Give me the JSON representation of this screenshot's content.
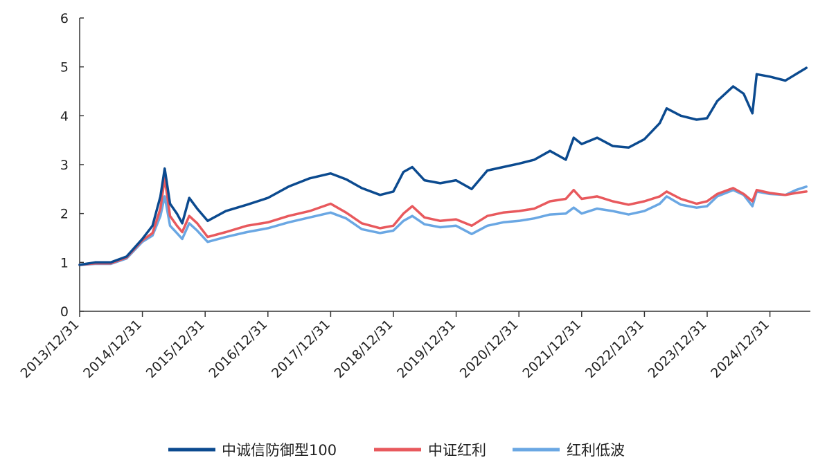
{
  "chart_data": {
    "type": "line",
    "title": "",
    "xlabel": "",
    "ylabel": "",
    "ylim": [
      0,
      6
    ],
    "yticks": [
      "0",
      "1",
      "2",
      "3",
      "4",
      "5",
      "6"
    ],
    "x_tick_labels": [
      "2013/12/31",
      "2014/12/31",
      "2015/12/31",
      "2016/12/31",
      "2017/12/31",
      "2018/12/31",
      "2019/12/31",
      "2020/12/31",
      "2021/12/31",
      "2022/12/31",
      "2023/12/31",
      "2024/12/31"
    ],
    "x_range": [
      "2013/12/31",
      "2025/07/31"
    ],
    "legend_position": "bottom",
    "grid": false,
    "series": [
      {
        "name": "中诚信防御型100",
        "color": "#0b4a8f",
        "points": [
          [
            "2013/12/31",
            0.95
          ],
          [
            "2014/03/31",
            1.0
          ],
          [
            "2014/06/30",
            1.0
          ],
          [
            "2014/09/30",
            1.12
          ],
          [
            "2014/12/31",
            1.48
          ],
          [
            "2015/02/28",
            1.75
          ],
          [
            "2015/04/15",
            2.35
          ],
          [
            "2015/05/10",
            2.92
          ],
          [
            "2015/06/10",
            2.2
          ],
          [
            "2015/07/20",
            2.0
          ],
          [
            "2015/08/20",
            1.8
          ],
          [
            "2015/09/30",
            2.32
          ],
          [
            "2015/11/15",
            2.1
          ],
          [
            "2016/01/15",
            1.85
          ],
          [
            "2016/04/30",
            2.05
          ],
          [
            "2016/08/31",
            2.18
          ],
          [
            "2016/12/31",
            2.32
          ],
          [
            "2017/04/30",
            2.55
          ],
          [
            "2017/08/31",
            2.72
          ],
          [
            "2017/12/31",
            2.82
          ],
          [
            "2018/03/31",
            2.7
          ],
          [
            "2018/06/30",
            2.52
          ],
          [
            "2018/10/15",
            2.38
          ],
          [
            "2018/12/31",
            2.45
          ],
          [
            "2019/02/28",
            2.85
          ],
          [
            "2019/04/20",
            2.95
          ],
          [
            "2019/06/30",
            2.68
          ],
          [
            "2019/09/30",
            2.62
          ],
          [
            "2019/12/31",
            2.68
          ],
          [
            "2020/03/31",
            2.5
          ],
          [
            "2020/06/30",
            2.88
          ],
          [
            "2020/09/30",
            2.95
          ],
          [
            "2020/12/31",
            3.02
          ],
          [
            "2021/03/31",
            3.1
          ],
          [
            "2021/06/30",
            3.28
          ],
          [
            "2021/09/30",
            3.1
          ],
          [
            "2021/11/15",
            3.55
          ],
          [
            "2021/12/31",
            3.42
          ],
          [
            "2022/03/31",
            3.55
          ],
          [
            "2022/06/30",
            3.38
          ],
          [
            "2022/09/30",
            3.35
          ],
          [
            "2022/12/31",
            3.52
          ],
          [
            "2023/03/31",
            3.85
          ],
          [
            "2023/05/10",
            4.15
          ],
          [
            "2023/07/31",
            4.0
          ],
          [
            "2023/10/31",
            3.92
          ],
          [
            "2023/12/31",
            3.95
          ],
          [
            "2024/02/28",
            4.3
          ],
          [
            "2024/05/31",
            4.6
          ],
          [
            "2024/07/31",
            4.45
          ],
          [
            "2024/09/20",
            4.05
          ],
          [
            "2024/10/15",
            4.85
          ],
          [
            "2024/12/31",
            4.8
          ],
          [
            "2025/03/31",
            4.72
          ],
          [
            "2025/05/31",
            4.85
          ],
          [
            "2025/07/31",
            4.98
          ]
        ]
      },
      {
        "name": "中证红利",
        "color": "#e8595d",
        "points": [
          [
            "2013/12/31",
            0.95
          ],
          [
            "2014/03/31",
            0.98
          ],
          [
            "2014/06/30",
            0.98
          ],
          [
            "2014/09/30",
            1.1
          ],
          [
            "2014/12/31",
            1.45
          ],
          [
            "2015/02/28",
            1.6
          ],
          [
            "2015/04/15",
            2.1
          ],
          [
            "2015/05/10",
            2.72
          ],
          [
            "2015/06/10",
            1.95
          ],
          [
            "2015/07/20",
            1.75
          ],
          [
            "2015/08/20",
            1.62
          ],
          [
            "2015/09/30",
            1.95
          ],
          [
            "2015/11/15",
            1.8
          ],
          [
            "2016/01/15",
            1.52
          ],
          [
            "2016/04/30",
            1.62
          ],
          [
            "2016/08/31",
            1.75
          ],
          [
            "2016/12/31",
            1.82
          ],
          [
            "2017/04/30",
            1.95
          ],
          [
            "2017/08/31",
            2.05
          ],
          [
            "2017/12/31",
            2.2
          ],
          [
            "2018/03/31",
            2.02
          ],
          [
            "2018/06/30",
            1.8
          ],
          [
            "2018/10/15",
            1.7
          ],
          [
            "2018/12/31",
            1.75
          ],
          [
            "2019/02/28",
            2.0
          ],
          [
            "2019/04/20",
            2.15
          ],
          [
            "2019/06/30",
            1.92
          ],
          [
            "2019/09/30",
            1.85
          ],
          [
            "2019/12/31",
            1.88
          ],
          [
            "2020/03/31",
            1.75
          ],
          [
            "2020/06/30",
            1.95
          ],
          [
            "2020/09/30",
            2.02
          ],
          [
            "2020/12/31",
            2.05
          ],
          [
            "2021/03/31",
            2.1
          ],
          [
            "2021/06/30",
            2.25
          ],
          [
            "2021/09/30",
            2.3
          ],
          [
            "2021/11/15",
            2.48
          ],
          [
            "2021/12/31",
            2.3
          ],
          [
            "2022/03/31",
            2.35
          ],
          [
            "2022/06/30",
            2.25
          ],
          [
            "2022/09/30",
            2.18
          ],
          [
            "2022/12/31",
            2.25
          ],
          [
            "2023/03/31",
            2.35
          ],
          [
            "2023/05/10",
            2.45
          ],
          [
            "2023/07/31",
            2.3
          ],
          [
            "2023/10/31",
            2.2
          ],
          [
            "2023/12/31",
            2.25
          ],
          [
            "2024/02/28",
            2.4
          ],
          [
            "2024/05/31",
            2.52
          ],
          [
            "2024/07/31",
            2.4
          ],
          [
            "2024/09/20",
            2.25
          ],
          [
            "2024/10/15",
            2.48
          ],
          [
            "2024/12/31",
            2.42
          ],
          [
            "2025/03/31",
            2.38
          ],
          [
            "2025/05/31",
            2.42
          ],
          [
            "2025/07/31",
            2.45
          ]
        ]
      },
      {
        "name": "红利低波",
        "color": "#6aa7e3",
        "points": [
          [
            "2013/12/31",
            0.95
          ],
          [
            "2014/03/31",
            0.97
          ],
          [
            "2014/06/30",
            0.97
          ],
          [
            "2014/09/30",
            1.08
          ],
          [
            "2014/12/31",
            1.42
          ],
          [
            "2015/02/28",
            1.55
          ],
          [
            "2015/04/15",
            1.95
          ],
          [
            "2015/05/10",
            2.35
          ],
          [
            "2015/06/10",
            1.75
          ],
          [
            "2015/07/20",
            1.6
          ],
          [
            "2015/08/20",
            1.48
          ],
          [
            "2015/09/30",
            1.8
          ],
          [
            "2015/11/15",
            1.65
          ],
          [
            "2016/01/15",
            1.42
          ],
          [
            "2016/04/30",
            1.52
          ],
          [
            "2016/08/31",
            1.62
          ],
          [
            "2016/12/31",
            1.7
          ],
          [
            "2017/04/30",
            1.82
          ],
          [
            "2017/08/31",
            1.92
          ],
          [
            "2017/12/31",
            2.02
          ],
          [
            "2018/03/31",
            1.9
          ],
          [
            "2018/06/30",
            1.68
          ],
          [
            "2018/10/15",
            1.6
          ],
          [
            "2018/12/31",
            1.65
          ],
          [
            "2019/02/28",
            1.85
          ],
          [
            "2019/04/20",
            1.95
          ],
          [
            "2019/06/30",
            1.78
          ],
          [
            "2019/09/30",
            1.72
          ],
          [
            "2019/12/31",
            1.75
          ],
          [
            "2020/03/31",
            1.58
          ],
          [
            "2020/06/30",
            1.75
          ],
          [
            "2020/09/30",
            1.82
          ],
          [
            "2020/12/31",
            1.85
          ],
          [
            "2021/03/31",
            1.9
          ],
          [
            "2021/06/30",
            1.98
          ],
          [
            "2021/09/30",
            2.0
          ],
          [
            "2021/11/15",
            2.12
          ],
          [
            "2021/12/31",
            2.0
          ],
          [
            "2022/03/31",
            2.1
          ],
          [
            "2022/06/30",
            2.05
          ],
          [
            "2022/09/30",
            1.98
          ],
          [
            "2022/12/31",
            2.05
          ],
          [
            "2023/03/31",
            2.2
          ],
          [
            "2023/05/10",
            2.35
          ],
          [
            "2023/07/31",
            2.18
          ],
          [
            "2023/10/31",
            2.12
          ],
          [
            "2023/12/31",
            2.15
          ],
          [
            "2024/02/28",
            2.35
          ],
          [
            "2024/05/31",
            2.48
          ],
          [
            "2024/07/31",
            2.38
          ],
          [
            "2024/09/20",
            2.15
          ],
          [
            "2024/10/15",
            2.45
          ],
          [
            "2024/12/31",
            2.4
          ],
          [
            "2025/03/31",
            2.38
          ],
          [
            "2025/05/31",
            2.48
          ],
          [
            "2025/07/31",
            2.55
          ]
        ]
      }
    ]
  }
}
